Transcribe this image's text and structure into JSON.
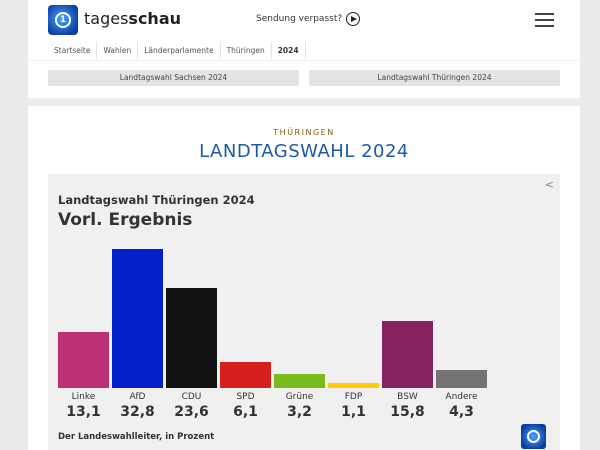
{
  "header": {
    "brand_light": "tages",
    "brand_bold": "schau",
    "missed": "Sendung verpasst?",
    "logo_icon": "tagesschau-logo-icon",
    "menu_icon": "hamburger-icon"
  },
  "breadcrumb": [
    "Startseite",
    "Wahlen",
    "Länderparlamente",
    "Thüringen",
    "2024"
  ],
  "tabs": [
    "Landtagswahl Sachsen 2024",
    "Landtagswahl Thüringen 2024"
  ],
  "main": {
    "kicker": "THÜRINGEN",
    "title": "LANDTAGSWAHL 2024"
  },
  "chart_data": {
    "type": "bar",
    "title": "Landtagswahl Thüringen 2024",
    "subtitle": "Vorl. Ergebnis",
    "source": "Der Landeswahlleiter, in Prozent",
    "categories": [
      "Linke",
      "AfD",
      "CDU",
      "SPD",
      "Grüne",
      "FDP",
      "BSW",
      "Andere"
    ],
    "values": [
      13.1,
      32.8,
      23.6,
      6.1,
      3.2,
      1.1,
      15.8,
      4.3
    ],
    "value_labels": [
      "13,1",
      "32,8",
      "23,6",
      "6,1",
      "3,2",
      "1,1",
      "15,8",
      "4,3"
    ],
    "colors": [
      "#be3075",
      "#0021c8",
      "#121212",
      "#d71f1d",
      "#78bc1b",
      "#ffcc00",
      "#86205f",
      "#737373"
    ],
    "ylim": [
      0,
      32.8
    ],
    "grid": false
  }
}
